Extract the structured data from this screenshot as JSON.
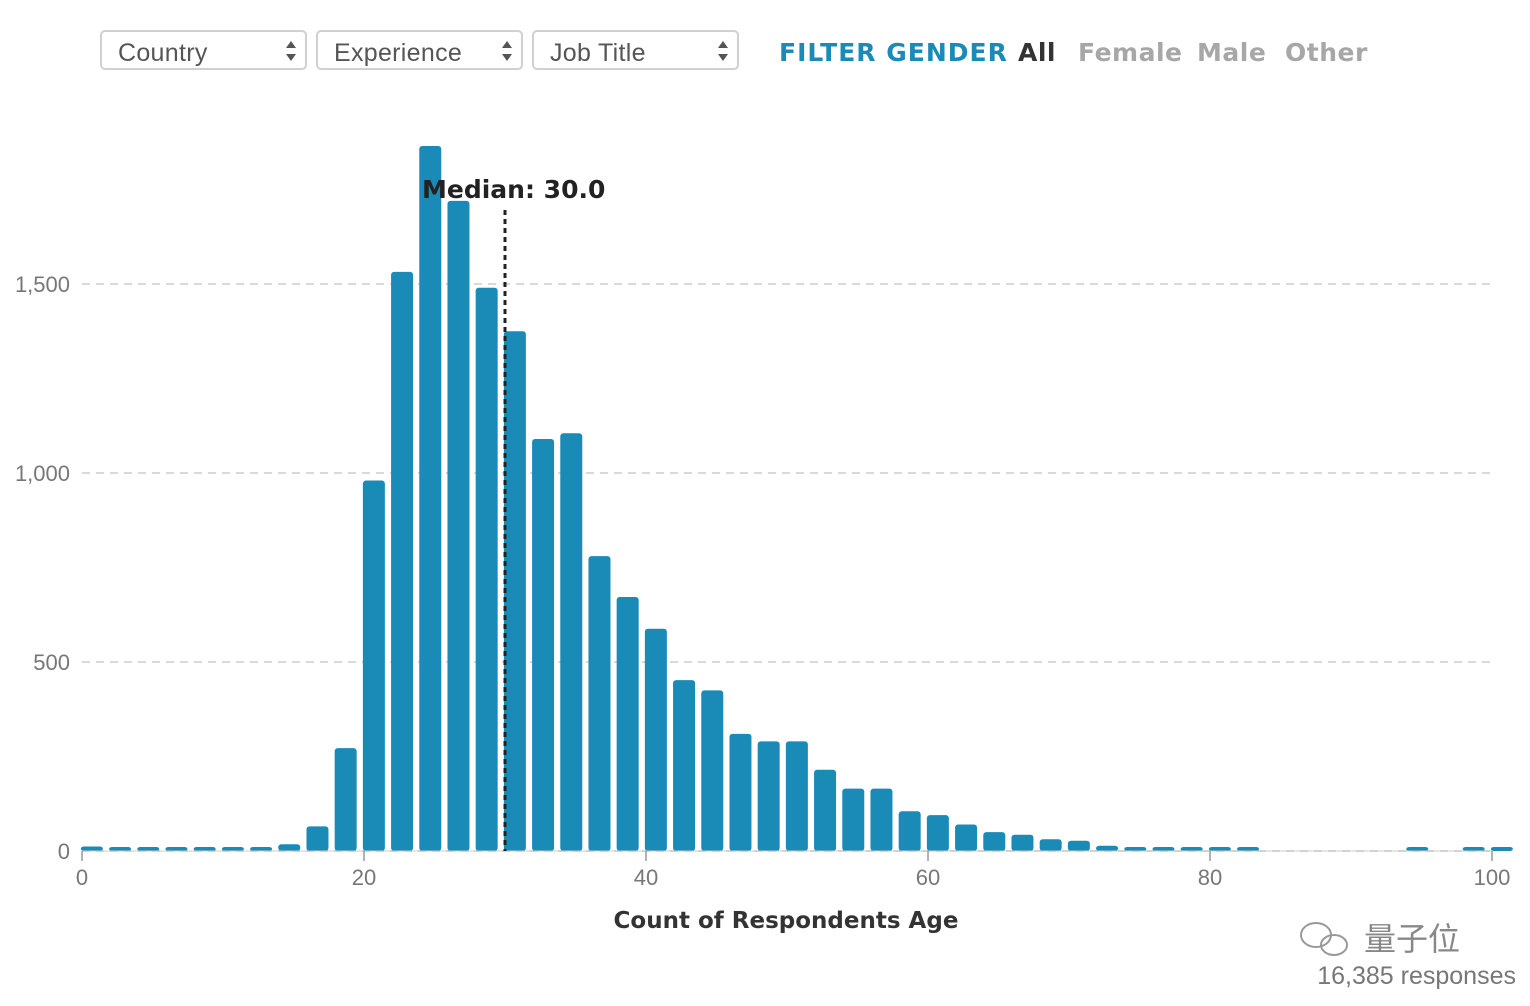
{
  "filters": {
    "selects": [
      {
        "label": "Country"
      },
      {
        "label": "Experience"
      },
      {
        "label": "Job Title"
      }
    ],
    "gender_title": "FILTER GENDER",
    "gender_options": [
      {
        "label": "All",
        "active": true
      },
      {
        "label": "Female",
        "active": false
      },
      {
        "label": "Male",
        "active": false
      },
      {
        "label": "Other",
        "active": false
      }
    ]
  },
  "colors": {
    "bar": "#1a8ab7",
    "accent": "#1a8ab7",
    "grid": "#d9d9d9",
    "median_line": "#222222",
    "tick_text": "#777777"
  },
  "chart_data": {
    "type": "bar",
    "xlabel": "Count of Respondents Age",
    "ylabel": "",
    "title": "",
    "xlim": [
      0,
      101
    ],
    "ylim": [
      0,
      1900
    ],
    "grid": true,
    "x_ticks": [
      0,
      20,
      40,
      60,
      80,
      100
    ],
    "y_ticks": [
      0,
      500,
      1000,
      1500
    ],
    "y_tick_labels": [
      "0",
      "500",
      "1,000",
      "1,500"
    ],
    "median": {
      "value": 30.0,
      "label": "Median: 30.0"
    },
    "bars": [
      {
        "x": 0.7,
        "y": 12
      },
      {
        "x": 2.7,
        "y": 3
      },
      {
        "x": 4.7,
        "y": 2
      },
      {
        "x": 6.7,
        "y": 2
      },
      {
        "x": 8.7,
        "y": 2
      },
      {
        "x": 10.7,
        "y": 3
      },
      {
        "x": 12.7,
        "y": 4
      },
      {
        "x": 14.7,
        "y": 18
      },
      {
        "x": 16.7,
        "y": 65
      },
      {
        "x": 18.7,
        "y": 272
      },
      {
        "x": 20.7,
        "y": 980
      },
      {
        "x": 22.7,
        "y": 1532
      },
      {
        "x": 24.7,
        "y": 1865
      },
      {
        "x": 26.7,
        "y": 1720
      },
      {
        "x": 28.7,
        "y": 1490
      },
      {
        "x": 30.7,
        "y": 1375
      },
      {
        "x": 32.7,
        "y": 1090
      },
      {
        "x": 34.7,
        "y": 1105
      },
      {
        "x": 36.7,
        "y": 780
      },
      {
        "x": 38.7,
        "y": 672
      },
      {
        "x": 40.7,
        "y": 588
      },
      {
        "x": 42.7,
        "y": 452
      },
      {
        "x": 44.7,
        "y": 425
      },
      {
        "x": 46.7,
        "y": 310
      },
      {
        "x": 48.7,
        "y": 290
      },
      {
        "x": 50.7,
        "y": 290
      },
      {
        "x": 52.7,
        "y": 215
      },
      {
        "x": 54.7,
        "y": 165
      },
      {
        "x": 56.7,
        "y": 165
      },
      {
        "x": 58.7,
        "y": 105
      },
      {
        "x": 60.7,
        "y": 95
      },
      {
        "x": 62.7,
        "y": 70
      },
      {
        "x": 64.7,
        "y": 50
      },
      {
        "x": 66.7,
        "y": 43
      },
      {
        "x": 68.7,
        "y": 31
      },
      {
        "x": 70.7,
        "y": 27
      },
      {
        "x": 72.7,
        "y": 14
      },
      {
        "x": 74.7,
        "y": 8
      },
      {
        "x": 76.7,
        "y": 7
      },
      {
        "x": 78.7,
        "y": 4
      },
      {
        "x": 80.7,
        "y": 5
      },
      {
        "x": 82.7,
        "y": 3
      },
      {
        "x": 94.7,
        "y": 2
      },
      {
        "x": 98.7,
        "y": 3
      },
      {
        "x": 100.7,
        "y": 8
      }
    ]
  },
  "footer": {
    "responses": "16,385 responses",
    "watermark_text": "量子位"
  }
}
